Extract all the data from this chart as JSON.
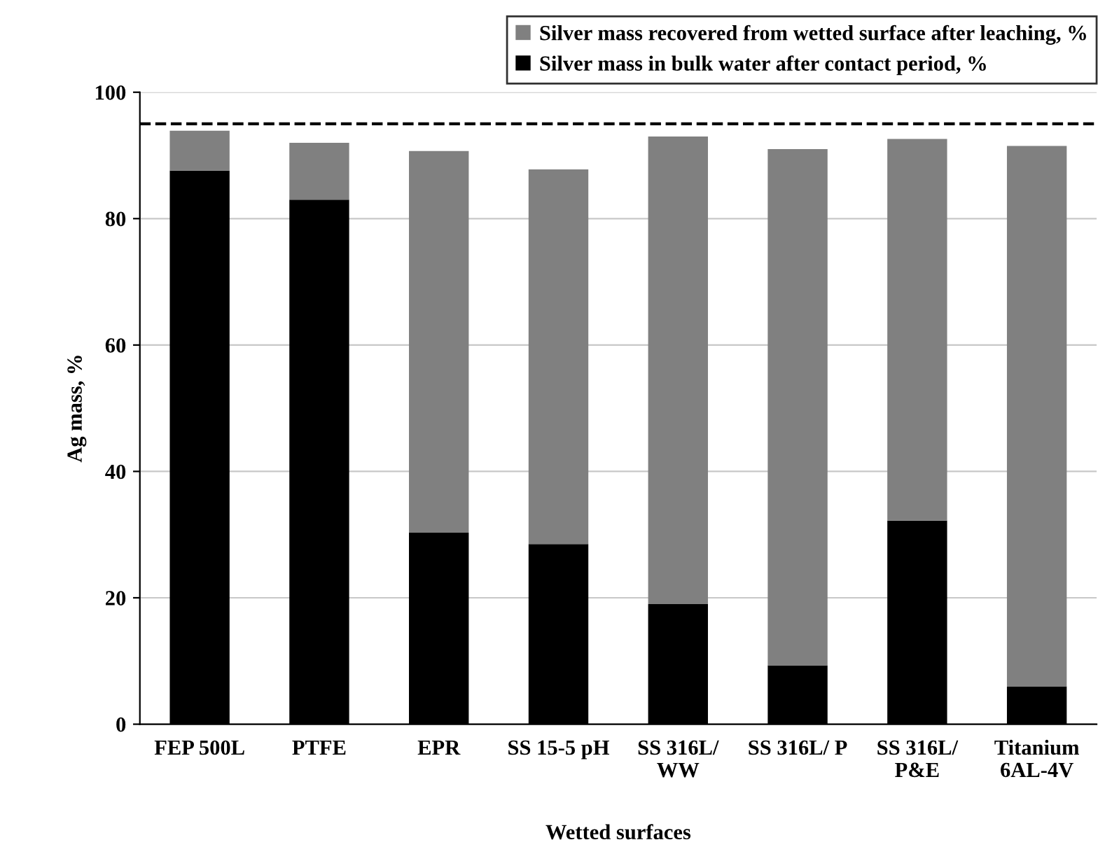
{
  "chart_data": {
    "type": "bar",
    "stacked": true,
    "xlabel": "Wetted surfaces",
    "ylabel": "Ag mass, %",
    "categories": [
      "FEP 500L",
      "PTFE",
      "EPR",
      "SS 15-5 pH",
      "SS 316L/\nWW",
      "SS 316L/ P",
      "SS 316L/\nP&E",
      "Titanium\n6AL-4V"
    ],
    "series": [
      {
        "name": "Silver mass in bulk water after contact period, %",
        "color": "#000000",
        "values": [
          87.6,
          83.0,
          30.3,
          28.5,
          19.0,
          9.3,
          32.2,
          6.0
        ]
      },
      {
        "name": "Silver mass recovered from wetted surface after leaching, %",
        "color": "#808080",
        "values": [
          6.3,
          9.0,
          60.4,
          59.3,
          74.0,
          81.7,
          60.4,
          85.5
        ]
      }
    ],
    "ylim": [
      0,
      100
    ],
    "yticks": [
      0,
      20,
      40,
      60,
      80,
      100
    ],
    "grid": "y",
    "legend": "top right",
    "ref_lines": [
      {
        "axis": "y",
        "value": 95,
        "color": "#000000",
        "line_style": "dashed"
      }
    ]
  }
}
